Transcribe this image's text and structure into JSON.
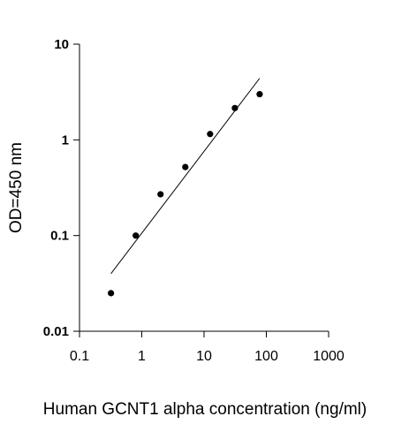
{
  "chart_data": {
    "type": "scatter",
    "title": "",
    "xlabel": "Human GCNT1 alpha concentration (ng/ml)",
    "ylabel": "OD=450 nm",
    "x_scale": "log",
    "y_scale": "log",
    "xlim": [
      0.1,
      1000
    ],
    "ylim": [
      0.01,
      10
    ],
    "x_ticks": [
      0.1,
      1,
      10,
      100,
      1000
    ],
    "x_tick_labels": [
      "0.1",
      "1",
      "10",
      "100",
      "1000"
    ],
    "y_ticks": [
      0.01,
      0.1,
      1,
      10
    ],
    "y_tick_labels": [
      "0.01",
      "0.1",
      "1",
      "10"
    ],
    "grid": false,
    "legend": "none",
    "series": [
      {
        "kind": "points",
        "x": [
          0.32,
          0.8,
          2.0,
          5.0,
          12.5,
          31.25,
          78.1
        ],
        "y": [
          0.025,
          0.1,
          0.27,
          0.52,
          1.15,
          2.15,
          3.0
        ],
        "color": "#000000"
      },
      {
        "kind": "trend-line",
        "x": [
          0.32,
          78.1
        ],
        "y": [
          0.04,
          4.4
        ],
        "color": "#000000"
      }
    ]
  }
}
